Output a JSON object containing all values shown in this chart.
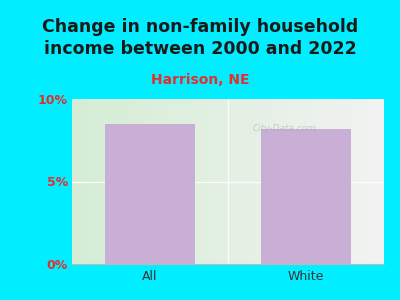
{
  "title": "Change in non-family household\nincome between 2000 and 2022",
  "subtitle": "Harrison, NE",
  "categories": [
    "All",
    "White"
  ],
  "values": [
    8.5,
    8.2
  ],
  "bar_color": "#c9aed6",
  "title_fontsize": 12.5,
  "subtitle_fontsize": 10,
  "subtitle_color": "#e03030",
  "title_color": "#1a1a1a",
  "tick_label_color": "#e03030",
  "ylim": [
    0,
    10
  ],
  "yticks": [
    0,
    5,
    10
  ],
  "ytick_labels": [
    "0%",
    "5%",
    "10%"
  ],
  "background_outer": "#00eeff",
  "watermark": "City-Data.com",
  "watermark_color": "#aaaaaa"
}
